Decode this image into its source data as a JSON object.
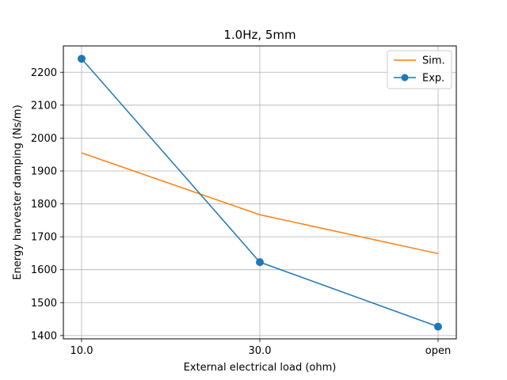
{
  "chart_data": {
    "type": "line",
    "title": "1.0Hz, 5mm",
    "xlabel": "External electrical load (ohm)",
    "ylabel": "Energy harvester damping (Ns/m)",
    "categories": [
      "10.0",
      "30.0",
      "open"
    ],
    "ylim": [
      1390,
      2280
    ],
    "yticks": [
      1400,
      1500,
      1600,
      1700,
      1800,
      1900,
      2000,
      2100,
      2200
    ],
    "grid": true,
    "legend_position": "top-right",
    "series": [
      {
        "name": "Sim.",
        "values": [
          1955,
          1767,
          1649
        ],
        "color": "#ff7f0e",
        "marker": "none"
      },
      {
        "name": "Exp.",
        "values": [
          2241,
          1623,
          1427
        ],
        "color": "#1f77b4",
        "marker": "circle"
      }
    ]
  }
}
